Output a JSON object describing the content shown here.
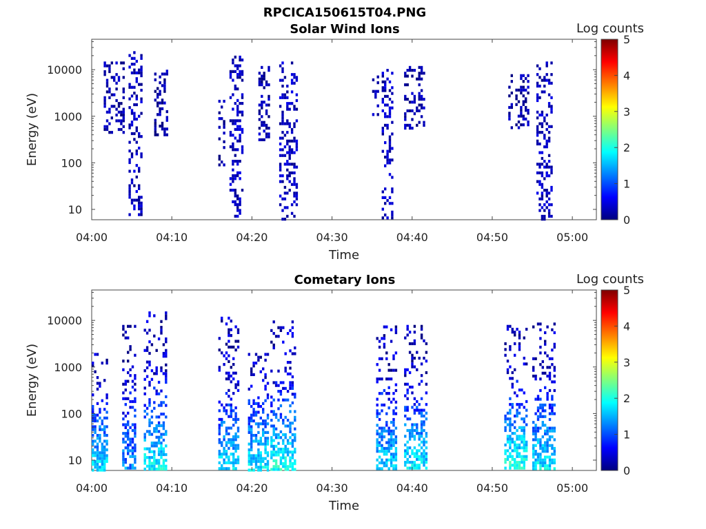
{
  "figure_title": "RPCICA150615T04.PNG",
  "colors": {
    "colormap": [
      "#00007f",
      "#0000ff",
      "#007fff",
      "#00ffff",
      "#7fff7f",
      "#ffff00",
      "#ff7f00",
      "#ff0000",
      "#7f0000"
    ]
  },
  "chart_data": [
    {
      "type": "heatmap",
      "title": "Solar Wind Ions",
      "xlabel": "Time",
      "ylabel": "Energy (eV)",
      "x_unit": "minutes after 04:00",
      "xlim": [
        0,
        63
      ],
      "xticks": [
        {
          "value": 0,
          "label": "04:00"
        },
        {
          "value": 10,
          "label": "04:10"
        },
        {
          "value": 20,
          "label": "04:20"
        },
        {
          "value": 30,
          "label": "04:30"
        },
        {
          "value": 40,
          "label": "04:40"
        },
        {
          "value": 50,
          "label": "04:50"
        },
        {
          "value": 60,
          "label": "05:00"
        }
      ],
      "ylim": [
        6,
        45000
      ],
      "yscale": "log",
      "yticks": [
        {
          "value": 10,
          "label": "10"
        },
        {
          "value": 100,
          "label": "100"
        },
        {
          "value": 1000,
          "label": "1000"
        },
        {
          "value": 10000,
          "label": "10000"
        }
      ],
      "colorbar": {
        "label": "Log counts",
        "min": 0,
        "max": 5,
        "ticks": [
          "0",
          "1",
          "2",
          "3",
          "4",
          "5"
        ]
      },
      "bursts": [
        {
          "t_start": 4.6,
          "t_end": 6.3,
          "e_min": 6,
          "e_max": 25000,
          "level": 0.3
        },
        {
          "t_start": 1.5,
          "t_end": 4.0,
          "e_min": 400,
          "e_max": 15000,
          "level": 0.2
        },
        {
          "t_start": 7.8,
          "t_end": 9.5,
          "e_min": 400,
          "e_max": 10000,
          "level": 0.2
        },
        {
          "t_start": 17.2,
          "t_end": 19.0,
          "e_min": 6,
          "e_max": 20000,
          "level": 0.3
        },
        {
          "t_start": 15.8,
          "t_end": 16.6,
          "e_min": 80,
          "e_max": 3000,
          "level": 0.2
        },
        {
          "t_start": 20.8,
          "t_end": 22.4,
          "e_min": 300,
          "e_max": 12000,
          "level": 0.2
        },
        {
          "t_start": 23.4,
          "t_end": 25.6,
          "e_min": 6,
          "e_max": 15000,
          "level": 0.3
        },
        {
          "t_start": 36.2,
          "t_end": 37.8,
          "e_min": 6,
          "e_max": 12000,
          "level": 0.3
        },
        {
          "t_start": 35.0,
          "t_end": 35.8,
          "e_min": 1000,
          "e_max": 10000,
          "level": 0.2
        },
        {
          "t_start": 39.0,
          "t_end": 41.5,
          "e_min": 500,
          "e_max": 12000,
          "level": 0.2
        },
        {
          "t_start": 52.0,
          "t_end": 54.5,
          "e_min": 500,
          "e_max": 8000,
          "level": 0.2
        },
        {
          "t_start": 55.5,
          "t_end": 57.6,
          "e_min": 6,
          "e_max": 15000,
          "level": 0.3
        }
      ]
    },
    {
      "type": "heatmap",
      "title": "Cometary Ions",
      "xlabel": "Time",
      "ylabel": "Energy (eV)",
      "x_unit": "minutes after 04:00",
      "xlim": [
        0,
        63
      ],
      "xticks": [
        {
          "value": 0,
          "label": "04:00"
        },
        {
          "value": 10,
          "label": "04:10"
        },
        {
          "value": 20,
          "label": "04:20"
        },
        {
          "value": 30,
          "label": "04:30"
        },
        {
          "value": 40,
          "label": "04:40"
        },
        {
          "value": 50,
          "label": "04:50"
        },
        {
          "value": 60,
          "label": "05:00"
        }
      ],
      "ylim": [
        6,
        45000
      ],
      "yscale": "log",
      "yticks": [
        {
          "value": 10,
          "label": "10"
        },
        {
          "value": 100,
          "label": "100"
        },
        {
          "value": 1000,
          "label": "1000"
        },
        {
          "value": 10000,
          "label": "10000"
        }
      ],
      "colorbar": {
        "label": "Log counts",
        "min": 0,
        "max": 5,
        "ticks": [
          "0",
          "1",
          "2",
          "3",
          "4",
          "5"
        ]
      },
      "bursts": [
        {
          "t_start": 0.0,
          "t_end": 2.0,
          "e_min": 6,
          "e_max": 2000,
          "level": 1.6
        },
        {
          "t_start": 3.8,
          "t_end": 5.5,
          "e_min": 6,
          "e_max": 8000,
          "level": 1.2
        },
        {
          "t_start": 6.5,
          "t_end": 9.3,
          "e_min": 6,
          "e_max": 18000,
          "level": 1.8
        },
        {
          "t_start": 15.8,
          "t_end": 18.5,
          "e_min": 6,
          "e_max": 12000,
          "level": 1.6
        },
        {
          "t_start": 19.5,
          "t_end": 22.0,
          "e_min": 6,
          "e_max": 2000,
          "level": 1.7
        },
        {
          "t_start": 22.3,
          "t_end": 25.5,
          "e_min": 6,
          "e_max": 10000,
          "level": 1.9
        },
        {
          "t_start": 35.5,
          "t_end": 38.0,
          "e_min": 6,
          "e_max": 9000,
          "level": 1.6
        },
        {
          "t_start": 39.0,
          "t_end": 41.8,
          "e_min": 6,
          "e_max": 8000,
          "level": 1.7
        },
        {
          "t_start": 51.5,
          "t_end": 54.5,
          "e_min": 6,
          "e_max": 8000,
          "level": 2.0
        },
        {
          "t_start": 55.0,
          "t_end": 57.8,
          "e_min": 6,
          "e_max": 9000,
          "level": 1.7
        }
      ]
    }
  ]
}
